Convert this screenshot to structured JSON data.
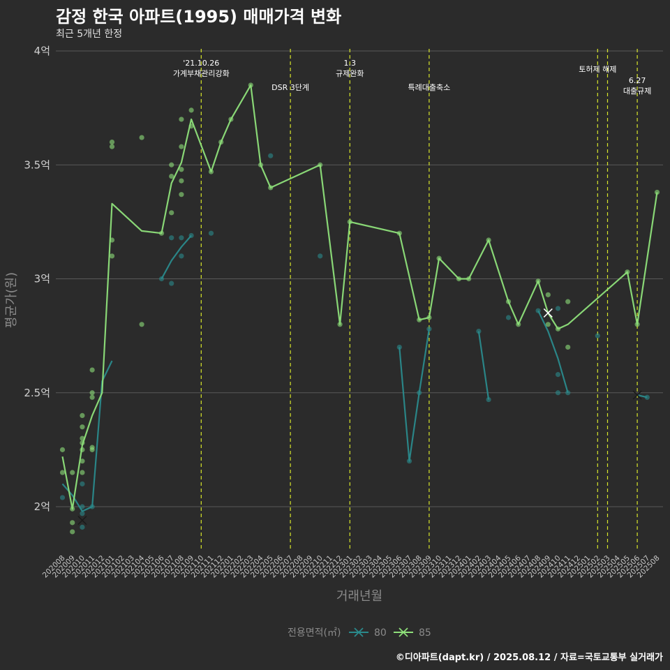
{
  "header": {
    "title": "감정 한국 아파트(1995) 매매가격 변화",
    "subtitle": "최근 5개년 한정"
  },
  "footer": {
    "credit": "©디아파트(dapt.kr) / 2025.08.12 / 자료=국토교통부 실거래가"
  },
  "colors": {
    "background": "#2b2b2b",
    "grid": "#5a5a5a",
    "s80": "#2a8a8c",
    "s85": "#8ee07a",
    "vline": "#d8e62a"
  },
  "chart_data": {
    "type": "line",
    "title": "감정 한국 아파트(1995) 매매가격 변화",
    "subtitle": "최근 5개년 한정",
    "xlabel": "거래년월",
    "ylabel": "평균가(원)",
    "x_categories": [
      "202008",
      "202009",
      "202010",
      "202011",
      "202012",
      "202101",
      "202102",
      "202103",
      "202104",
      "202105",
      "202106",
      "202107",
      "202108",
      "202109",
      "202110",
      "202111",
      "202112",
      "202201",
      "202202",
      "202203",
      "202204",
      "202205",
      "202206",
      "202207",
      "202208",
      "202209",
      "202210",
      "202211",
      "202212",
      "202301",
      "202302",
      "202303",
      "202304",
      "202305",
      "202306",
      "202307",
      "202308",
      "202309",
      "202310",
      "202311",
      "202312",
      "202401",
      "202402",
      "202403",
      "202404",
      "202405",
      "202406",
      "202407",
      "202408",
      "202409",
      "202410",
      "202411",
      "202412",
      "202501",
      "202502",
      "202503",
      "202504",
      "202505",
      "202506",
      "202507",
      "202508"
    ],
    "y_ticks": [
      {
        "value": 2.0,
        "label": "2억"
      },
      {
        "value": 2.5,
        "label": "2.5억"
      },
      {
        "value": 3.0,
        "label": "3억"
      },
      {
        "value": 3.5,
        "label": "3.5억"
      },
      {
        "value": 4.0,
        "label": "4억"
      }
    ],
    "ylim": [
      1.8,
      4.0
    ],
    "grid": true,
    "legend": {
      "title": "전용면적(㎡)",
      "position": "bottom"
    },
    "series": [
      {
        "name": "80",
        "color": "#2a8a8c",
        "segments": [
          [
            [
              "202008",
              2.1
            ],
            [
              "202009",
              2.05
            ],
            [
              "202010",
              1.98
            ],
            [
              "202011",
              2.0
            ],
            [
              "202012",
              2.55
            ],
            [
              "202101",
              2.64
            ]
          ],
          [
            [
              "202106",
              3.0
            ],
            [
              "202107",
              3.08
            ],
            [
              "202108",
              3.14
            ],
            [
              "202109",
              3.19
            ]
          ],
          [
            [
              "202306",
              2.7
            ],
            [
              "202307",
              2.2
            ],
            [
              "202308",
              2.5
            ],
            [
              "202309",
              2.78
            ]
          ],
          [
            [
              "202402",
              2.77
            ],
            [
              "202403",
              2.47
            ]
          ],
          [
            [
              "202408",
              2.86
            ],
            [
              "202409",
              2.77
            ],
            [
              "202410",
              2.65
            ],
            [
              "202411",
              2.5
            ]
          ],
          [
            [
              "202506",
              2.49
            ],
            [
              "202507",
              2.48
            ]
          ]
        ],
        "points": [
          [
            "202008",
            2.04
          ],
          [
            "202010",
            2.0
          ],
          [
            "202010",
            1.97
          ],
          [
            "202010",
            1.91
          ],
          [
            "202010",
            2.1
          ],
          [
            "202011",
            2.0
          ],
          [
            "202106",
            3.0
          ],
          [
            "202107",
            3.18
          ],
          [
            "202107",
            2.98
          ],
          [
            "202108",
            3.1
          ],
          [
            "202108",
            3.18
          ],
          [
            "202109",
            3.19
          ],
          [
            "202111",
            3.2
          ],
          [
            "202205",
            3.54
          ],
          [
            "202210",
            3.1
          ],
          [
            "202306",
            2.7
          ],
          [
            "202307",
            2.2
          ],
          [
            "202308",
            2.5
          ],
          [
            "202309",
            2.78
          ],
          [
            "202402",
            2.77
          ],
          [
            "202403",
            2.47
          ],
          [
            "202405",
            2.83
          ],
          [
            "202408",
            2.86
          ],
          [
            "202410",
            2.58
          ],
          [
            "202410",
            2.5
          ],
          [
            "202410",
            2.87
          ],
          [
            "202411",
            2.5
          ],
          [
            "202502",
            2.75
          ],
          [
            "202507",
            2.48
          ]
        ],
        "cross_markers": [
          [
            "202010",
            1.94
          ],
          [
            "202506",
            2.49
          ]
        ]
      },
      {
        "name": "85",
        "color": "#8ee07a",
        "segments": [
          [
            [
              "202008",
              2.22
            ],
            [
              "202009",
              1.99
            ],
            [
              "202010",
              2.27
            ],
            [
              "202011",
              2.4
            ],
            [
              "202012",
              2.5
            ],
            [
              "202101",
              3.33
            ],
            [
              "202104",
              3.21
            ],
            [
              "202106",
              3.2
            ],
            [
              "202107",
              3.42
            ],
            [
              "202108",
              3.51
            ],
            [
              "202109",
              3.7
            ],
            [
              "202111",
              3.47
            ],
            [
              "202112",
              3.6
            ],
            [
              "202201",
              3.7
            ],
            [
              "202203",
              3.85
            ],
            [
              "202204",
              3.5
            ],
            [
              "202205",
              3.4
            ],
            [
              "202210",
              3.5
            ],
            [
              "202212",
              2.8
            ],
            [
              "202301",
              3.25
            ],
            [
              "202306",
              3.2
            ],
            [
              "202308",
              2.82
            ],
            [
              "202309",
              2.83
            ],
            [
              "202310",
              3.09
            ],
            [
              "202312",
              3.0
            ],
            [
              "202401",
              3.0
            ],
            [
              "202403",
              3.17
            ],
            [
              "202405",
              2.9
            ],
            [
              "202406",
              2.8
            ],
            [
              "202408",
              2.99
            ],
            [
              "202409",
              2.85
            ],
            [
              "202410",
              2.78
            ],
            [
              "202411",
              2.8
            ],
            [
              "202505",
              3.03
            ],
            [
              "202506",
              2.8
            ],
            [
              "202508",
              3.38
            ]
          ]
        ],
        "points": [
          [
            "202008",
            2.25
          ],
          [
            "202008",
            2.15
          ],
          [
            "202009",
            2.15
          ],
          [
            "202009",
            1.99
          ],
          [
            "202009",
            1.93
          ],
          [
            "202009",
            1.89
          ],
          [
            "202010",
            2.4
          ],
          [
            "202010",
            2.35
          ],
          [
            "202010",
            2.3
          ],
          [
            "202010",
            2.28
          ],
          [
            "202010",
            2.25
          ],
          [
            "202010",
            2.2
          ],
          [
            "202010",
            2.15
          ],
          [
            "202011",
            2.6
          ],
          [
            "202011",
            2.5
          ],
          [
            "202011",
            2.48
          ],
          [
            "202011",
            2.26
          ],
          [
            "202011",
            2.25
          ],
          [
            "202101",
            3.6
          ],
          [
            "202101",
            3.58
          ],
          [
            "202101",
            3.17
          ],
          [
            "202101",
            3.1
          ],
          [
            "202104",
            3.62
          ],
          [
            "202104",
            2.8
          ],
          [
            "202106",
            3.2
          ],
          [
            "202107",
            3.5
          ],
          [
            "202107",
            3.45
          ],
          [
            "202107",
            3.29
          ],
          [
            "202108",
            3.7
          ],
          [
            "202108",
            3.58
          ],
          [
            "202108",
            3.48
          ],
          [
            "202108",
            3.43
          ],
          [
            "202108",
            3.37
          ],
          [
            "202109",
            3.74
          ],
          [
            "202109",
            3.67
          ],
          [
            "202111",
            3.47
          ],
          [
            "202112",
            3.6
          ],
          [
            "202201",
            3.7
          ],
          [
            "202203",
            3.85
          ],
          [
            "202204",
            3.5
          ],
          [
            "202205",
            3.4
          ],
          [
            "202210",
            3.5
          ],
          [
            "202212",
            2.8
          ],
          [
            "202301",
            3.25
          ],
          [
            "202306",
            3.2
          ],
          [
            "202308",
            2.82
          ],
          [
            "202309",
            2.83
          ],
          [
            "202310",
            3.09
          ],
          [
            "202312",
            3.0
          ],
          [
            "202401",
            3.0
          ],
          [
            "202403",
            3.17
          ],
          [
            "202405",
            2.9
          ],
          [
            "202406",
            2.8
          ],
          [
            "202408",
            2.99
          ],
          [
            "202409",
            2.93
          ],
          [
            "202409",
            2.8
          ],
          [
            "202410",
            2.78
          ],
          [
            "202411",
            2.9
          ],
          [
            "202411",
            2.7
          ],
          [
            "202505",
            3.03
          ],
          [
            "202506",
            2.8
          ],
          [
            "202508",
            3.38
          ]
        ],
        "cross_markers": [
          [
            "202409",
            2.85
          ]
        ]
      }
    ],
    "annotations": [
      {
        "x": "202110",
        "lines": [
          "'21.10.26",
          "가계부채관리강화"
        ],
        "tier": 0
      },
      {
        "x": "202207",
        "lines": [
          "DSR 3단계"
        ],
        "tier": 2
      },
      {
        "x": "202301",
        "lines": [
          "1.3",
          "규제완화"
        ],
        "tier": 0
      },
      {
        "x": "202309",
        "lines": [
          "특례대출축소"
        ],
        "tier": 2
      },
      {
        "x": "202502",
        "lines": [
          "토허제 해제"
        ],
        "tier": 1
      },
      {
        "x": "202503",
        "lines": [],
        "tier": 1
      },
      {
        "x": "202506",
        "lines": [
          "6.27",
          "대출규제"
        ],
        "tier": 3
      }
    ]
  }
}
